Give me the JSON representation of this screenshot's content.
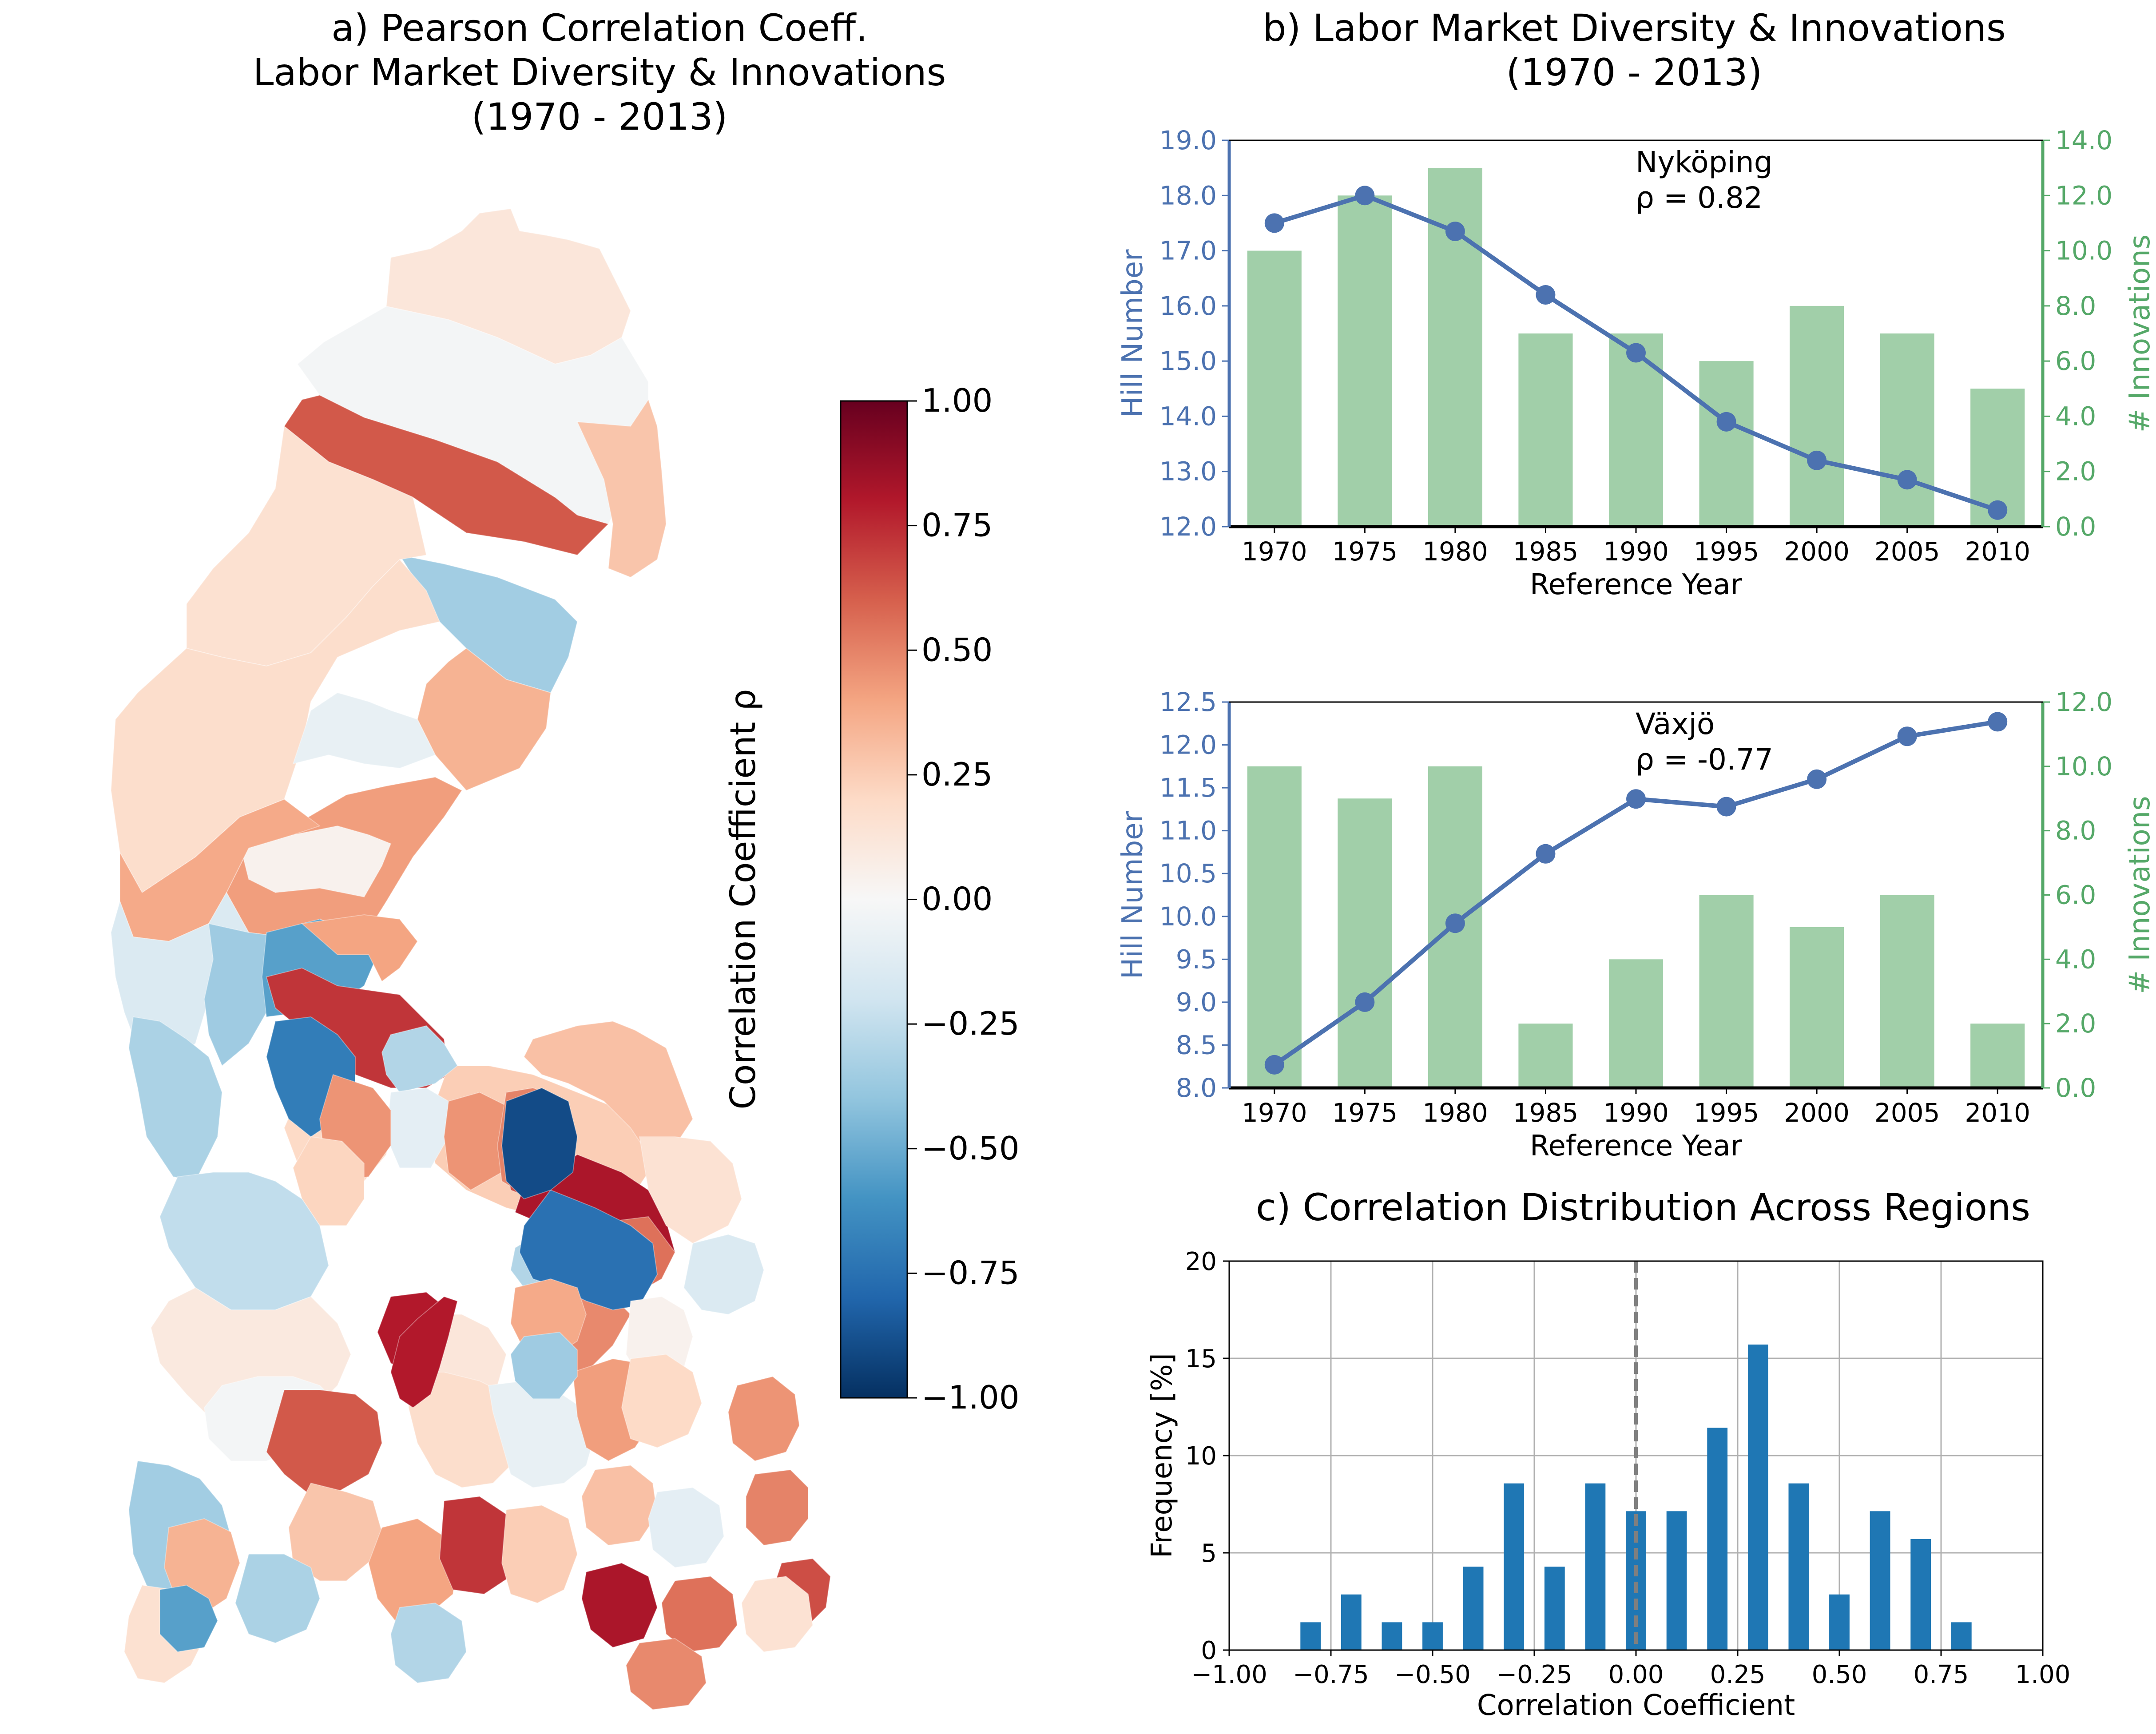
{
  "chart_data": [
    {
      "panel": "a",
      "type": "heatmap",
      "title_lines": [
        "a) Pearson Correlation Coeff.",
        "Labor Market Diversity & Innovations",
        "(1970 - 2013)"
      ],
      "colorbar": {
        "label": "Correlation Coefficient ρ",
        "range": [
          -1.0,
          1.0
        ],
        "ticks": [
          1.0,
          0.75,
          0.5,
          0.25,
          0.0,
          -0.25,
          -0.5,
          -0.75,
          -1.0
        ],
        "tick_labels": [
          "1.00",
          "0.75",
          "0.50",
          "0.25",
          "0.00",
          "−0.25",
          "−0.50",
          "−0.75",
          "−1.00"
        ],
        "colormap": [
          "#053061",
          "#2166ac",
          "#4393c3",
          "#92c5de",
          "#d1e5f0",
          "#f7f7f7",
          "#fddbc7",
          "#f4a582",
          "#d6604d",
          "#b2182b",
          "#67001f"
        ]
      },
      "regions": [
        {
          "name": "",
          "value": 0.12
        },
        {
          "name": "",
          "value": -0.02
        },
        {
          "name": "",
          "value": 0.62
        },
        {
          "name": "",
          "value": 0.28
        },
        {
          "name": "",
          "value": -0.35
        },
        {
          "name": "",
          "value": 0.16
        },
        {
          "name": "",
          "value": 0.35
        },
        {
          "name": "",
          "value": 0.18
        },
        {
          "name": "",
          "value": -0.08
        },
        {
          "name": "",
          "value": 0.42
        },
        {
          "name": "",
          "value": 0.04
        },
        {
          "name": "",
          "value": 0.38
        },
        {
          "name": "",
          "value": -0.15
        },
        {
          "name": "",
          "value": -0.36
        },
        {
          "name": "",
          "value": -0.55
        },
        {
          "name": "",
          "value": -0.32
        },
        {
          "name": "",
          "value": 0.4
        },
        {
          "name": "",
          "value": 0.72
        },
        {
          "name": "",
          "value": 0.25
        },
        {
          "name": "",
          "value": 0.2
        },
        {
          "name": "",
          "value": -0.3
        },
        {
          "name": "",
          "value": 0.3
        },
        {
          "name": "",
          "value": -0.1
        },
        {
          "name": "",
          "value": 0.45
        },
        {
          "name": "",
          "value": 0.5
        },
        {
          "name": "",
          "value": 0.65
        },
        {
          "name": "",
          "value": 0.82
        },
        {
          "name": "",
          "value": 0.55
        },
        {
          "name": "",
          "value": 0.15
        },
        {
          "name": "",
          "value": 0.48
        },
        {
          "name": "",
          "value": -0.3
        },
        {
          "name": "",
          "value": -0.75
        },
        {
          "name": "",
          "value": -0.9
        },
        {
          "name": "",
          "value": -0.7
        },
        {
          "name": "",
          "value": 0.45
        },
        {
          "name": "",
          "value": 0.22
        },
        {
          "name": "",
          "value": -0.25
        },
        {
          "name": "",
          "value": 0.1
        },
        {
          "name": "",
          "value": 0.8
        }
      ]
    },
    {
      "panel": "b-top",
      "type": "bar",
      "title_lines": [
        "b) Labor Market Diversity & Innovations",
        "(1970 - 2013)"
      ],
      "annotation": [
        "Nyköping",
        "ρ = 0.82"
      ],
      "categories": [
        "1970",
        "1975",
        "1980",
        "1985",
        "1990",
        "1995",
        "2000",
        "2005",
        "2010"
      ],
      "series": [
        {
          "name": "Hill Number",
          "kind": "line",
          "axis": "left",
          "color": "#4c72b0",
          "values": [
            17.5,
            18.0,
            17.35,
            16.2,
            15.15,
            13.9,
            13.2,
            12.85,
            12.3
          ]
        },
        {
          "name": "# Innovations",
          "kind": "bar",
          "axis": "right",
          "color": "#a1cfa9",
          "values": [
            10,
            12,
            13,
            7,
            7,
            6,
            8,
            7,
            5
          ]
        }
      ],
      "xlabel": "Reference Year",
      "ylabel": "Hill Number",
      "y2label": "# Innovations",
      "ylim": [
        12.0,
        19.0
      ],
      "yticks": [
        "12.0",
        "13.0",
        "14.0",
        "15.0",
        "16.0",
        "17.0",
        "18.0",
        "19.0"
      ],
      "y2lim": [
        0,
        14
      ],
      "y2ticks": [
        "0.0",
        "2.0",
        "4.0",
        "6.0",
        "8.0",
        "10.0",
        "12.0",
        "14.0"
      ],
      "left_axis_color": "#4c72b0",
      "right_axis_color": "#55a868"
    },
    {
      "panel": "b-bottom",
      "type": "bar",
      "annotation": [
        "Växjö",
        "ρ = -0.77"
      ],
      "categories": [
        "1970",
        "1975",
        "1980",
        "1985",
        "1990",
        "1995",
        "2000",
        "2005",
        "2010"
      ],
      "series": [
        {
          "name": "Hill Number",
          "kind": "line",
          "axis": "left",
          "color": "#4c72b0",
          "values": [
            8.27,
            9.0,
            9.92,
            10.73,
            11.37,
            11.28,
            11.6,
            12.1,
            12.27
          ]
        },
        {
          "name": "# Innovations",
          "kind": "bar",
          "axis": "right",
          "color": "#a1cfa9",
          "values": [
            10,
            9,
            10,
            2,
            4,
            6,
            5,
            6,
            2
          ]
        }
      ],
      "xlabel": "Reference Year",
      "ylabel": "Hill Number",
      "y2label": "# Innovations",
      "ylim": [
        8.0,
        12.5
      ],
      "yticks": [
        "8.0",
        "8.5",
        "9.0",
        "9.5",
        "10.0",
        "10.5",
        "11.0",
        "11.5",
        "12.0",
        "12.5"
      ],
      "y2lim": [
        0,
        12
      ],
      "y2ticks": [
        "0.0",
        "2.0",
        "4.0",
        "6.0",
        "8.0",
        "10.0",
        "12.0"
      ],
      "left_axis_color": "#4c72b0",
      "right_axis_color": "#55a868"
    },
    {
      "panel": "c",
      "type": "bar",
      "title": "c) Correlation Distribution Across Regions",
      "x": [
        -0.8,
        -0.7,
        -0.6,
        -0.5,
        -0.4,
        -0.3,
        -0.2,
        -0.1,
        0.0,
        0.1,
        0.2,
        0.3,
        0.4,
        0.5,
        0.6,
        0.7,
        0.8
      ],
      "values": [
        1.43,
        2.86,
        1.43,
        1.43,
        4.29,
        8.57,
        4.29,
        8.57,
        7.14,
        7.14,
        11.43,
        15.71,
        8.57,
        2.86,
        7.14,
        5.71,
        1.43
      ],
      "bar_width": 0.05,
      "color": "#1f77b4",
      "xlabel": "Correlation Coefficient",
      "ylabel": "Frequency [%]",
      "xlim": [
        -1.0,
        1.0
      ],
      "xticks": [
        -1.0,
        -0.75,
        -0.5,
        -0.25,
        0.0,
        0.25,
        0.5,
        0.75,
        1.0
      ],
      "xtick_labels": [
        "−1.00",
        "−0.75",
        "−0.50",
        "−0.25",
        "0.00",
        "0.25",
        "0.50",
        "0.75",
        "1.00"
      ],
      "ylim": [
        0,
        20
      ],
      "yticks": [
        "0",
        "5",
        "10",
        "15",
        "20"
      ],
      "grid": true,
      "reference_line": 0.0
    }
  ]
}
